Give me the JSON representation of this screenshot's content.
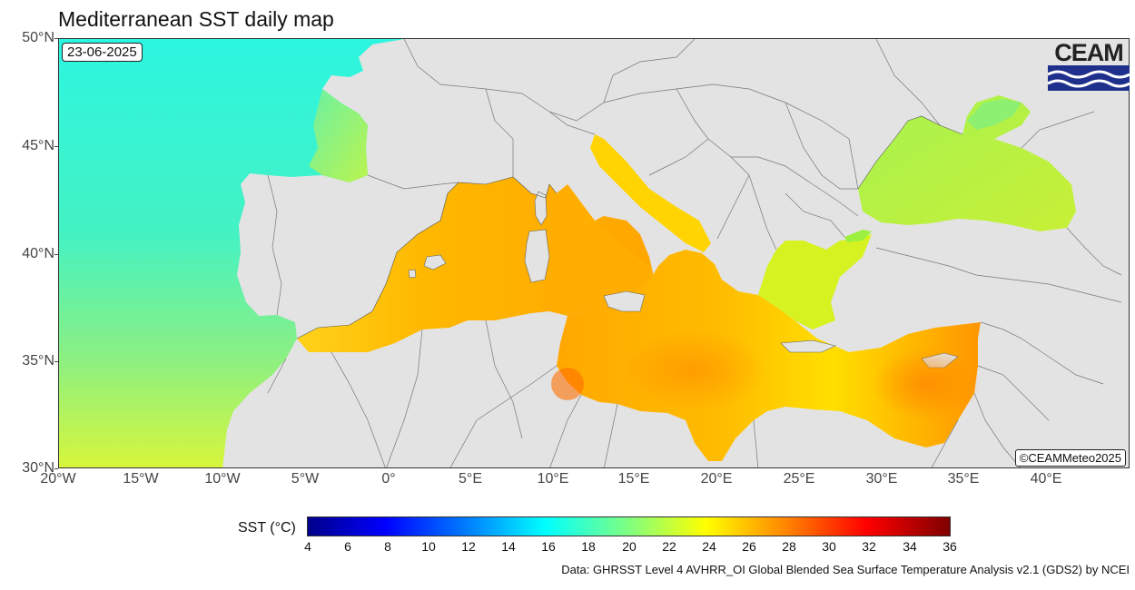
{
  "title": "Mediterranean SST daily map",
  "date": "23-06-2025",
  "credit": "©CEAMMeteo2025",
  "logo": {
    "text": "CEAM",
    "icon": "ceam-waves-logo",
    "color": "#1f2f8c"
  },
  "lat_labels": [
    "50°N",
    "45°N",
    "40°N",
    "35°N",
    "30°N"
  ],
  "lon_labels": [
    "20°W",
    "15°W",
    "10°W",
    "5°W",
    "0°",
    "5°E",
    "10°E",
    "15°E",
    "20°E",
    "25°E",
    "30°E",
    "35°E",
    "40°E"
  ],
  "colorbar": {
    "label": "SST (°C)",
    "ticks": [
      "4",
      "6",
      "8",
      "10",
      "12",
      "14",
      "16",
      "18",
      "20",
      "22",
      "24",
      "26",
      "28",
      "30",
      "32",
      "34",
      "36"
    ],
    "min": 4,
    "max": 36
  },
  "source": "Data: GHRSST Level 4 AVHRR_OI Global Blended Sea Surface Temperature Analysis v2.1 (GDS2) by NCEI",
  "colors": {
    "land": "#e3e3e3",
    "atlantic": "#40f0d8",
    "western_med": "#ffb000",
    "eastern_med": "#ff9a00",
    "black_sea": "#b8f040",
    "adriatic": "#ffd000"
  }
}
